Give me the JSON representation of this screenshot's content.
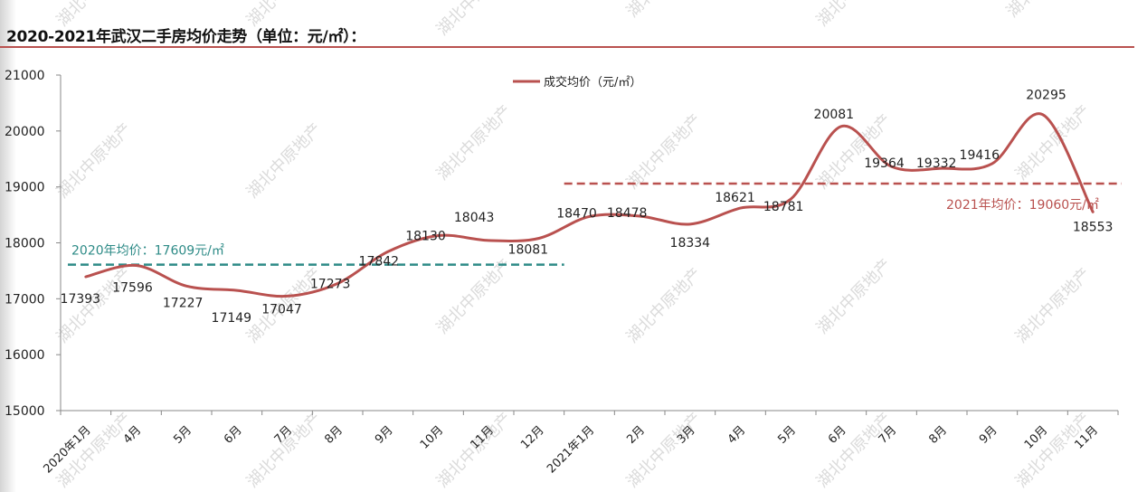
{
  "title": "2020-2021年武汉二手房均价走势（单位：元/㎡）：",
  "colors": {
    "line": "#b9514f",
    "avg2020": "#2e8b87",
    "avg2021": "#b9514f",
    "title_rule": "#b9514f",
    "axis": "#888888"
  },
  "watermark": "湖北中原地产",
  "chart_data": {
    "type": "line",
    "title": "2020-2021年武汉二手房均价走势（单位：元/㎡）：",
    "xlabel": "",
    "ylabel": "",
    "ylim": [
      15000,
      21000
    ],
    "yticks": [
      15000,
      16000,
      17000,
      18000,
      19000,
      20000,
      21000
    ],
    "grid": false,
    "legend_position": "top-center",
    "categories": [
      "2020年1月",
      "4月",
      "5月",
      "6月",
      "7月",
      "8月",
      "9月",
      "10月",
      "11月",
      "12月",
      "2021年1月",
      "2月",
      "3月",
      "4月",
      "5月",
      "6月",
      "7月",
      "8月",
      "9月",
      "10月",
      "11月"
    ],
    "series": [
      {
        "name": "成交均价（元/㎡）",
        "values": [
          17393,
          17596,
          17227,
          17149,
          17047,
          17273,
          17842,
          18130,
          18043,
          18081,
          18470,
          18478,
          18334,
          18621,
          18781,
          20081,
          19364,
          19332,
          19416,
          20295,
          18553
        ]
      }
    ],
    "reference_lines": [
      {
        "label": "2020年均价：17609元/㎡",
        "value": 17609,
        "from_index": 0,
        "to_index": 9,
        "style": "dashed"
      },
      {
        "label": "2021年均价：19060元/㎡",
        "value": 19060,
        "from_index": 10,
        "to_index": 20,
        "style": "dashed"
      }
    ],
    "legend": [
      "成交均价（元/㎡）"
    ]
  }
}
